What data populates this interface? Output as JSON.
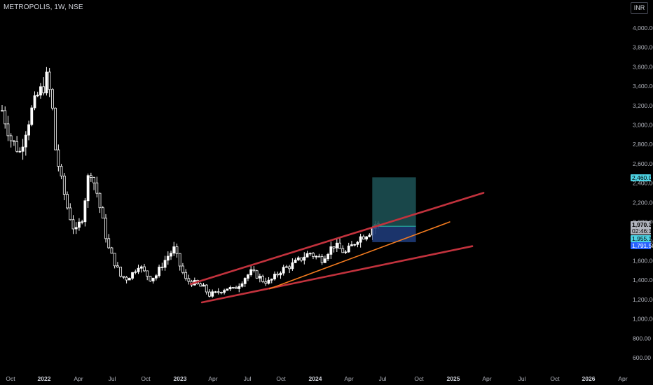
{
  "header": {
    "symbol": "METROPOLIS, 1W, NSE",
    "currency": "INR"
  },
  "colors": {
    "background": "#000000",
    "candle_up": "#ffffff",
    "candle_down": "#000000",
    "candle_outline": "#ffffff",
    "trendline_red": "#c2323d",
    "trendline_orange": "#f57c1f",
    "target_zone": "#1c4f52",
    "stop_zone": "#1e3a77",
    "entry_line": "#26a69a",
    "price_badge": "#b2b5be",
    "badge_cyan": "#4dd0e1",
    "badge_blue": "#2962ff"
  },
  "chart_data": {
    "type": "candlestick",
    "title": "METROPOLIS, 1W, NSE",
    "y_axis": {
      "ticks": [
        "4,000.00",
        "3,800.00",
        "3,600.00",
        "3,400.00",
        "3,200.00",
        "3,000.00",
        "2,800.00",
        "2,600.00",
        "2,400.00",
        "2,200.00",
        "2,000.00",
        "1,800.00",
        "1,600.00",
        "1,400.00",
        "1,200.00",
        "1,000.00",
        "800.00",
        "600.00"
      ],
      "ylim": [
        500,
        4250
      ]
    },
    "x_axis": {
      "ticks": [
        {
          "label": "Oct",
          "bold": false
        },
        {
          "label": "2022",
          "bold": true
        },
        {
          "label": "Apr",
          "bold": false
        },
        {
          "label": "Jul",
          "bold": false
        },
        {
          "label": "Oct",
          "bold": false
        },
        {
          "label": "2023",
          "bold": true
        },
        {
          "label": "Apr",
          "bold": false
        },
        {
          "label": "Jul",
          "bold": false
        },
        {
          "label": "Oct",
          "bold": false
        },
        {
          "label": "2024",
          "bold": true
        },
        {
          "label": "Apr",
          "bold": false
        },
        {
          "label": "Jul",
          "bold": false
        },
        {
          "label": "Oct",
          "bold": false
        },
        {
          "label": "2025",
          "bold": true
        },
        {
          "label": "Apr",
          "bold": false
        },
        {
          "label": "Jul",
          "bold": false
        },
        {
          "label": "Oct",
          "bold": false
        },
        {
          "label": "2026",
          "bold": true
        },
        {
          "label": "Apr",
          "bold": false
        }
      ]
    },
    "price_path": [
      [
        0,
        3150
      ],
      [
        3,
        2850
      ],
      [
        6,
        2720
      ],
      [
        8,
        2950
      ],
      [
        10,
        3150
      ],
      [
        12,
        3300
      ],
      [
        14,
        3400
      ],
      [
        15,
        3480
      ],
      [
        16,
        3350
      ],
      [
        17,
        3150
      ],
      [
        18,
        2750
      ],
      [
        20,
        2420
      ],
      [
        22,
        2150
      ],
      [
        24,
        1950
      ],
      [
        25,
        1900
      ],
      [
        27,
        2050
      ],
      [
        29,
        2450
      ],
      [
        30,
        2520
      ],
      [
        32,
        2300
      ],
      [
        34,
        2000
      ],
      [
        36,
        1720
      ],
      [
        38,
        1580
      ],
      [
        40,
        1440
      ],
      [
        42,
        1420
      ],
      [
        44,
        1470
      ],
      [
        46,
        1560
      ],
      [
        48,
        1480
      ],
      [
        50,
        1420
      ],
      [
        52,
        1450
      ],
      [
        54,
        1560
      ],
      [
        56,
        1650
      ],
      [
        58,
        1720
      ],
      [
        60,
        1550
      ],
      [
        62,
        1400
      ],
      [
        64,
        1380
      ],
      [
        66,
        1350
      ],
      [
        68,
        1320
      ],
      [
        70,
        1250
      ],
      [
        72,
        1260
      ],
      [
        74,
        1300
      ],
      [
        76,
        1320
      ],
      [
        78,
        1300
      ],
      [
        80,
        1360
      ],
      [
        82,
        1430
      ],
      [
        84,
        1480
      ],
      [
        86,
        1450
      ],
      [
        88,
        1400
      ],
      [
        90,
        1380
      ],
      [
        92,
        1430
      ],
      [
        94,
        1500
      ],
      [
        96,
        1530
      ],
      [
        98,
        1560
      ],
      [
        100,
        1600
      ],
      [
        102,
        1650
      ],
      [
        104,
        1680
      ],
      [
        106,
        1640
      ],
      [
        108,
        1620
      ],
      [
        110,
        1700
      ],
      [
        112,
        1760
      ],
      [
        114,
        1720
      ],
      [
        116,
        1680
      ],
      [
        118,
        1750
      ],
      [
        120,
        1830
      ],
      [
        122,
        1860
      ],
      [
        124,
        1900
      ],
      [
        126,
        1980
      ],
      [
        127,
        1970
      ]
    ],
    "trendlines": [
      {
        "color": "red",
        "start": {
          "date": "2023-02",
          "price": 1360
        },
        "end": {
          "date": "2025-04",
          "price": 2300
        }
      },
      {
        "color": "red",
        "start": {
          "date": "2023-03",
          "price": 1170
        },
        "end": {
          "date": "2025-03",
          "price": 1750
        }
      },
      {
        "color": "orange",
        "start": {
          "date": "2023-09",
          "price": 1310
        },
        "end": {
          "date": "2025-01",
          "price": 2000
        }
      }
    ],
    "position": {
      "type": "long",
      "entry": 1955.1,
      "target": 2460.0,
      "stop": 1791.5,
      "start": "2024-06",
      "end": "2024-10"
    },
    "price_labels": [
      {
        "label": "2,460.00",
        "value": 2460.0,
        "color": "#4dd0e1",
        "text_color": "#000000"
      },
      {
        "label": "1,970.30",
        "value": 1970.3,
        "color": "#b2b5be",
        "text_color": "#000000",
        "bold": true
      },
      {
        "label": "02:46:16",
        "value": 1935.0,
        "color": "#b2b5be",
        "text_color": "#000000"
      },
      {
        "label": "1,955.10",
        "value": 1955.1,
        "color": "#4dd0e1",
        "text_color": "#000000"
      },
      {
        "label": "1,791.50",
        "value": 1791.5,
        "color": "#2962ff",
        "text_color": "#ffffff"
      }
    ]
  }
}
